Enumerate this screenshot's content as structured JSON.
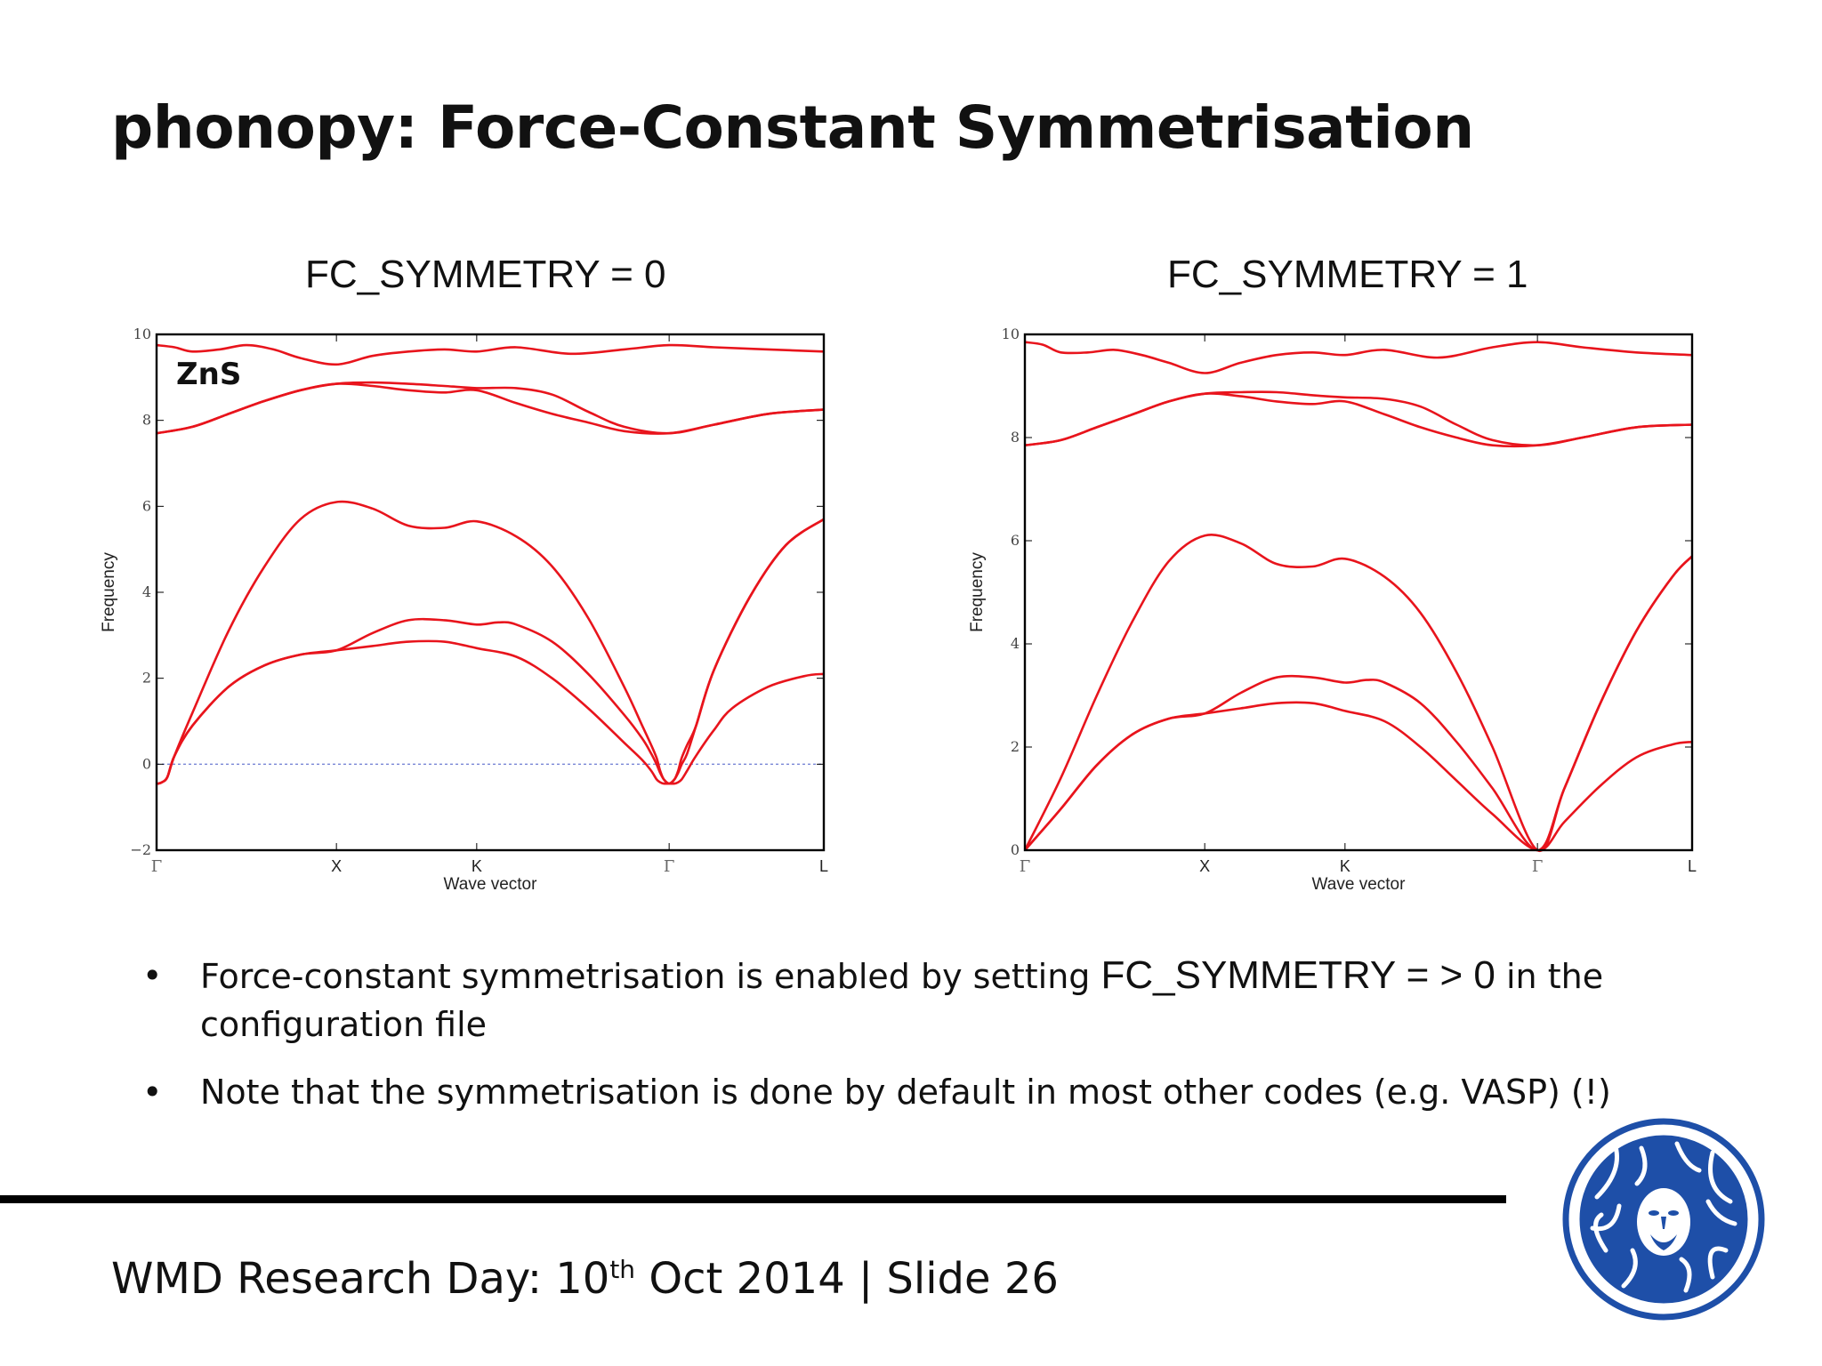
{
  "slide": {
    "title": "phonopy: Force-Constant Symmetrisation",
    "bullets": [
      {
        "text_before": "Force-constant symmetrisation is enabled by setting ",
        "code": "FC_SYMMETRY = > 0",
        "text_after": " in the configuration file"
      },
      {
        "text_before": "Note that the symmetrisation is done by default in most other codes (e.g. VASP) (!)",
        "code": "",
        "text_after": ""
      }
    ],
    "footer": {
      "prefix": "WMD Research Day: 10",
      "superscript": "th",
      "suffix": " Oct 2014 | Slide 26"
    },
    "logo_icon": "university-seal-icon"
  },
  "colors": {
    "band": "#e8141c",
    "zero_line": "#7a86d6",
    "axes": "#000000"
  },
  "chart_data": [
    {
      "type": "line",
      "title": "FC_SYMMETRY = 0",
      "material_label": "ZnS",
      "xlabel": "Wave vector",
      "ylabel": "Frequency",
      "ylim": [
        -2,
        10
      ],
      "yticks": [
        -2,
        0,
        2,
        4,
        6,
        8,
        10
      ],
      "ytick_labels": [
        "−2",
        "0",
        "2",
        "4",
        "6",
        "8",
        "10"
      ],
      "xlim": [
        0,
        3.71
      ],
      "kpoints": [
        {
          "label": "Γ",
          "x": 0
        },
        {
          "label": "X",
          "x": 1.0
        },
        {
          "label": "K",
          "x": 1.78
        },
        {
          "label": "Γ",
          "x": 2.85
        },
        {
          "label": "L",
          "x": 3.71
        }
      ],
      "zero_line": true,
      "series": [
        {
          "x": [
            0,
            0.01,
            0.03,
            0.06,
            0.1,
            0.2,
            0.4,
            0.6,
            0.8,
            1.0,
            1.2,
            1.4,
            1.6,
            1.78,
            2.0,
            2.2,
            2.4,
            2.6,
            2.7,
            2.75,
            2.78,
            2.8,
            2.82,
            2.85,
            2.88,
            2.9,
            2.92,
            2.95,
            3.0,
            3.1,
            3.2,
            3.4,
            3.6,
            3.71
          ],
          "y": [
            -0.45,
            -0.45,
            -0.42,
            -0.3,
            0.2,
            0.9,
            1.8,
            2.3,
            2.55,
            2.65,
            2.75,
            2.85,
            2.85,
            2.7,
            2.5,
            2.0,
            1.3,
            0.5,
            0.1,
            -0.15,
            -0.35,
            -0.42,
            -0.45,
            -0.45,
            -0.45,
            -0.42,
            -0.35,
            -0.15,
            0.2,
            0.8,
            1.3,
            1.8,
            2.05,
            2.1
          ]
        },
        {
          "x": [
            0,
            0.01,
            0.03,
            0.06,
            0.1,
            0.2,
            0.4,
            0.6,
            0.8,
            1.0,
            1.2,
            1.4,
            1.6,
            1.78,
            1.9,
            2.0,
            2.2,
            2.4,
            2.6,
            2.7,
            2.75,
            2.78,
            2.8,
            2.82,
            2.85,
            2.88,
            2.9,
            2.92,
            2.95,
            3.0,
            3.1,
            3.3,
            3.5,
            3.71
          ],
          "y": [
            -0.45,
            -0.45,
            -0.42,
            -0.3,
            0.2,
            0.9,
            1.8,
            2.3,
            2.55,
            2.65,
            3.05,
            3.35,
            3.35,
            3.25,
            3.3,
            3.25,
            2.85,
            2.1,
            1.15,
            0.6,
            0.25,
            0.0,
            -0.2,
            -0.35,
            -0.45,
            -0.35,
            -0.2,
            0.0,
            0.25,
            0.9,
            2.2,
            3.9,
            5.1,
            5.7
          ]
        },
        {
          "x": [
            0,
            0.01,
            0.03,
            0.06,
            0.1,
            0.2,
            0.4,
            0.6,
            0.8,
            1.0,
            1.2,
            1.4,
            1.6,
            1.78,
            2.0,
            2.2,
            2.4,
            2.6,
            2.7,
            2.75,
            2.78,
            2.8,
            2.82,
            2.85,
            2.88,
            2.9,
            2.92,
            2.95,
            3.0,
            3.1,
            3.3,
            3.5,
            3.71
          ],
          "y": [
            -0.45,
            -0.45,
            -0.42,
            -0.3,
            0.2,
            1.2,
            3.1,
            4.6,
            5.7,
            6.1,
            5.95,
            5.55,
            5.5,
            5.65,
            5.3,
            4.6,
            3.4,
            1.8,
            0.9,
            0.45,
            0.15,
            -0.15,
            -0.35,
            -0.45,
            -0.35,
            -0.15,
            0.15,
            0.45,
            0.9,
            2.2,
            3.9,
            5.1,
            5.7
          ]
        },
        {
          "x": [
            0,
            0.2,
            0.4,
            0.6,
            0.8,
            1.0,
            1.2,
            1.4,
            1.6,
            1.78,
            2.0,
            2.2,
            2.4,
            2.6,
            2.85,
            3.1,
            3.4,
            3.71
          ],
          "y": [
            7.7,
            7.85,
            8.15,
            8.45,
            8.7,
            8.85,
            8.8,
            8.7,
            8.65,
            8.7,
            8.4,
            8.15,
            7.95,
            7.75,
            7.7,
            7.9,
            8.15,
            8.25
          ]
        },
        {
          "x": [
            0,
            0.2,
            0.4,
            0.6,
            0.8,
            1.0,
            1.2,
            1.4,
            1.6,
            1.78,
            2.0,
            2.2,
            2.4,
            2.6,
            2.85,
            3.1,
            3.4,
            3.71
          ],
          "y": [
            7.7,
            7.85,
            8.15,
            8.45,
            8.7,
            8.85,
            8.88,
            8.85,
            8.8,
            8.75,
            8.75,
            8.6,
            8.2,
            7.85,
            7.7,
            7.9,
            8.15,
            8.25
          ]
        },
        {
          "x": [
            0,
            0.1,
            0.2,
            0.35,
            0.5,
            0.65,
            0.8,
            1.0,
            1.2,
            1.4,
            1.6,
            1.78,
            2.0,
            2.3,
            2.6,
            2.85,
            3.1,
            3.4,
            3.71
          ],
          "y": [
            9.75,
            9.7,
            9.6,
            9.65,
            9.75,
            9.65,
            9.45,
            9.3,
            9.5,
            9.6,
            9.65,
            9.6,
            9.7,
            9.55,
            9.65,
            9.75,
            9.7,
            9.65,
            9.6
          ]
        }
      ]
    },
    {
      "type": "line",
      "title": "FC_SYMMETRY = 1",
      "xlabel": "Wave vector",
      "ylabel": "Frequency",
      "ylim": [
        0,
        10
      ],
      "yticks": [
        0,
        2,
        4,
        6,
        8,
        10
      ],
      "ytick_labels": [
        "0",
        "2",
        "4",
        "6",
        "8",
        "10"
      ],
      "xlim": [
        0,
        3.71
      ],
      "kpoints": [
        {
          "label": "Γ",
          "x": 0
        },
        {
          "label": "X",
          "x": 1.0
        },
        {
          "label": "K",
          "x": 1.78
        },
        {
          "label": "Γ",
          "x": 2.85
        },
        {
          "label": "L",
          "x": 3.71
        }
      ],
      "zero_line": false,
      "series": [
        {
          "x": [
            0,
            0.2,
            0.4,
            0.6,
            0.8,
            1.0,
            1.2,
            1.4,
            1.6,
            1.78,
            2.0,
            2.2,
            2.4,
            2.6,
            2.85,
            3.0,
            3.2,
            3.4,
            3.6,
            3.71
          ],
          "y": [
            0,
            0.8,
            1.65,
            2.25,
            2.55,
            2.65,
            2.75,
            2.85,
            2.85,
            2.7,
            2.5,
            2.0,
            1.35,
            0.7,
            0,
            0.55,
            1.25,
            1.8,
            2.05,
            2.1
          ]
        },
        {
          "x": [
            0,
            0.2,
            0.4,
            0.6,
            0.8,
            1.0,
            1.2,
            1.4,
            1.6,
            1.78,
            1.9,
            2.0,
            2.2,
            2.4,
            2.6,
            2.85,
            3.0,
            3.2,
            3.4,
            3.6,
            3.71
          ],
          "y": [
            0,
            0.8,
            1.65,
            2.25,
            2.55,
            2.65,
            3.05,
            3.35,
            3.35,
            3.25,
            3.3,
            3.25,
            2.85,
            2.1,
            1.2,
            0,
            1.2,
            2.85,
            4.25,
            5.3,
            5.7
          ]
        },
        {
          "x": [
            0,
            0.2,
            0.4,
            0.6,
            0.8,
            1.0,
            1.2,
            1.4,
            1.6,
            1.78,
            2.0,
            2.2,
            2.4,
            2.6,
            2.85,
            3.0,
            3.2,
            3.4,
            3.6,
            3.71
          ],
          "y": [
            0,
            1.4,
            3.0,
            4.45,
            5.6,
            6.1,
            5.95,
            5.55,
            5.5,
            5.65,
            5.3,
            4.6,
            3.45,
            2.0,
            0,
            1.2,
            2.85,
            4.25,
            5.3,
            5.7
          ]
        },
        {
          "x": [
            0,
            0.2,
            0.4,
            0.6,
            0.8,
            1.0,
            1.2,
            1.4,
            1.6,
            1.78,
            2.0,
            2.2,
            2.4,
            2.6,
            2.85,
            3.1,
            3.4,
            3.71
          ],
          "y": [
            7.85,
            7.95,
            8.2,
            8.45,
            8.7,
            8.85,
            8.8,
            8.7,
            8.65,
            8.7,
            8.45,
            8.2,
            8.0,
            7.85,
            7.85,
            8.0,
            8.2,
            8.25
          ]
        },
        {
          "x": [
            0,
            0.2,
            0.4,
            0.6,
            0.8,
            1.0,
            1.2,
            1.4,
            1.6,
            1.78,
            2.0,
            2.2,
            2.4,
            2.6,
            2.85,
            3.1,
            3.4,
            3.71
          ],
          "y": [
            7.85,
            7.95,
            8.2,
            8.45,
            8.7,
            8.85,
            8.88,
            8.88,
            8.82,
            8.78,
            8.75,
            8.6,
            8.25,
            7.95,
            7.85,
            8.0,
            8.2,
            8.25
          ]
        },
        {
          "x": [
            0,
            0.1,
            0.2,
            0.35,
            0.5,
            0.65,
            0.8,
            1.0,
            1.2,
            1.4,
            1.6,
            1.78,
            2.0,
            2.3,
            2.6,
            2.85,
            3.1,
            3.4,
            3.71
          ],
          "y": [
            9.85,
            9.8,
            9.65,
            9.65,
            9.7,
            9.6,
            9.45,
            9.25,
            9.45,
            9.6,
            9.65,
            9.6,
            9.7,
            9.55,
            9.75,
            9.85,
            9.75,
            9.65,
            9.6
          ]
        }
      ]
    }
  ]
}
